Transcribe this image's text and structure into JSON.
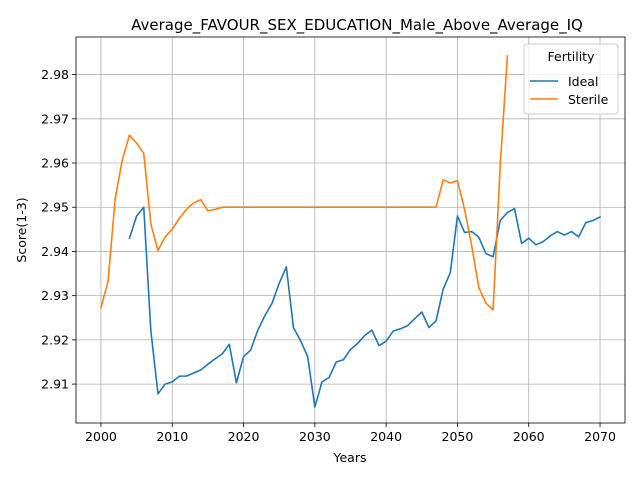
{
  "chart_data": {
    "type": "line",
    "title": "Average_FAVOUR_SEX_EDUCATION_Male_Above_Average_IQ",
    "xlabel": "Years",
    "ylabel": "Score(1-3)",
    "xlim": [
      1996.5,
      2073.5
    ],
    "ylim": [
      2.9012,
      2.9885
    ],
    "x_ticks": [
      2000,
      2010,
      2020,
      2030,
      2040,
      2050,
      2060,
      2070
    ],
    "y_ticks": [
      2.91,
      2.92,
      2.93,
      2.94,
      2.95,
      2.96,
      2.97,
      2.98
    ],
    "grid": true,
    "legend": {
      "title": "Fertility",
      "position": "top-right"
    },
    "series": [
      {
        "name": "Ideal",
        "color": "#1f77b4",
        "x": [
          2004,
          2005,
          2006,
          2007,
          2008,
          2009,
          2010,
          2011,
          2012,
          2013,
          2014,
          2015,
          2016,
          2017,
          2018,
          2019,
          2020,
          2021,
          2022,
          2023,
          2024,
          2025,
          2026,
          2027,
          2028,
          2029,
          2030,
          2031,
          2032,
          2033,
          2034,
          2035,
          2036,
          2037,
          2038,
          2039,
          2040,
          2041,
          2042,
          2043,
          2044,
          2045,
          2046,
          2047,
          2048,
          2049,
          2050,
          2051,
          2052,
          2053,
          2054,
          2055,
          2056,
          2057,
          2058,
          2059,
          2060,
          2061,
          2062,
          2063,
          2064,
          2065,
          2066,
          2067,
          2068,
          2069,
          2070
        ],
        "y": [
          2.943,
          2.948,
          2.95,
          2.922,
          2.9078,
          2.91,
          2.9105,
          2.9118,
          2.9118,
          2.9125,
          2.9132,
          2.9145,
          2.9157,
          2.9168,
          2.919,
          2.9103,
          2.9162,
          2.9177,
          2.9222,
          2.9255,
          2.9283,
          2.9328,
          2.9365,
          2.9228,
          2.9198,
          2.9162,
          2.9048,
          2.9105,
          2.9115,
          2.915,
          2.9155,
          2.9178,
          2.9192,
          2.921,
          2.9222,
          2.9187,
          2.9197,
          2.922,
          2.9225,
          2.9232,
          2.9248,
          2.9263,
          2.9228,
          2.9243,
          2.9315,
          2.9352,
          2.948,
          2.9443,
          2.9445,
          2.9432,
          2.9395,
          2.9388,
          2.947,
          2.9488,
          2.9497,
          2.9418,
          2.943,
          2.9415,
          2.9422,
          2.9435,
          2.9445,
          2.9437,
          2.9445,
          2.9433,
          2.9465,
          2.947,
          2.9478
        ]
      },
      {
        "name": "Sterile",
        "color": "#ff7f0e",
        "x": [
          2000,
          2001,
          2002,
          2003,
          2004,
          2005,
          2006,
          2007,
          2008,
          2009,
          2010,
          2011,
          2012,
          2013,
          2014,
          2015,
          2016,
          2017,
          2018,
          2019,
          2020,
          2021,
          2022,
          2023,
          2024,
          2025,
          2026,
          2027,
          2028,
          2029,
          2030,
          2031,
          2032,
          2033,
          2034,
          2035,
          2036,
          2037,
          2038,
          2039,
          2040,
          2041,
          2042,
          2043,
          2044,
          2045,
          2046,
          2047,
          2048,
          2049,
          2050,
          2051,
          2052,
          2053,
          2054,
          2055,
          2056,
          2057
        ],
        "y": [
          2.9273,
          2.9333,
          2.952,
          2.9608,
          2.9663,
          2.9645,
          2.9622,
          2.9462,
          2.9402,
          2.9433,
          2.945,
          2.9475,
          2.9495,
          2.951,
          2.9517,
          2.9492,
          2.9495,
          2.95,
          2.95,
          2.95,
          2.95,
          2.95,
          2.95,
          2.95,
          2.95,
          2.95,
          2.95,
          2.95,
          2.95,
          2.95,
          2.95,
          2.95,
          2.95,
          2.95,
          2.95,
          2.95,
          2.95,
          2.95,
          2.95,
          2.95,
          2.95,
          2.95,
          2.95,
          2.95,
          2.95,
          2.95,
          2.95,
          2.95,
          2.9562,
          2.9555,
          2.956,
          2.9495,
          2.9413,
          2.9318,
          2.9283,
          2.9268,
          2.9595,
          2.9842
        ]
      }
    ]
  }
}
